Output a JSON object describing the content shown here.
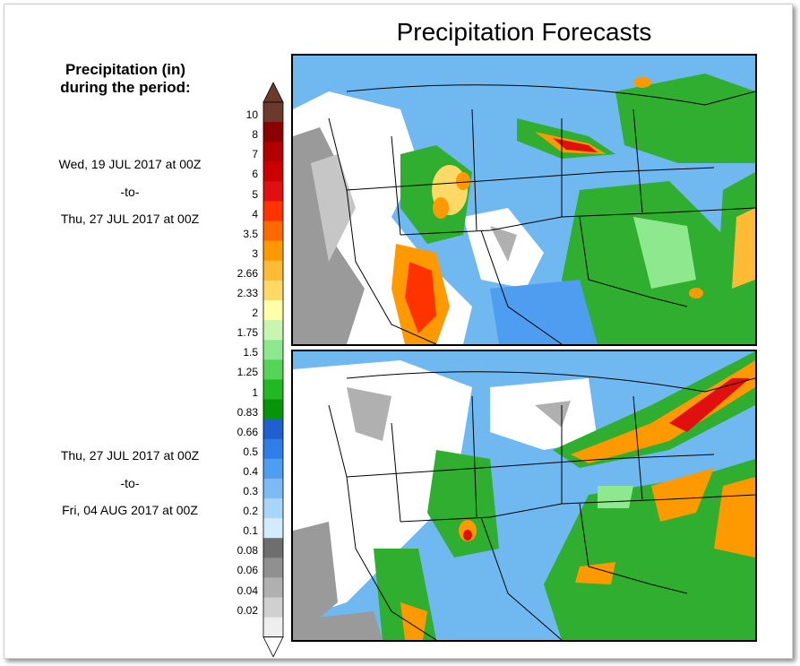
{
  "title": "Precipitation Forecasts",
  "legend": {
    "title_line1": "Precipitation (in)",
    "title_line2": "during the period:"
  },
  "periods": [
    {
      "start": "Wed, 19 JUL 2017 at 00Z",
      "sep": "-to-",
      "end": "Thu, 27 JUL 2017 at 00Z"
    },
    {
      "start": "Thu, 27 JUL 2017 at 00Z",
      "sep": "-to-",
      "end": "Fri, 04 AUG 2017 at 00Z"
    }
  ],
  "colorbar": {
    "levels": [
      "10",
      "8",
      "7",
      "6",
      "5",
      "4",
      "3.5",
      "3",
      "2.66",
      "2.33",
      "2",
      "1.75",
      "1.5",
      "1.25",
      "1",
      "0.83",
      "0.66",
      "0.5",
      "0.4",
      "0.3",
      "0.2",
      "0.1",
      "0.08",
      "0.06",
      "0.04",
      "0.02"
    ],
    "colors": [
      "#6b3a2a",
      "#8b0000",
      "#b00000",
      "#cc0000",
      "#e01010",
      "#ff3300",
      "#ff6a00",
      "#ff9900",
      "#ffbb33",
      "#ffd966",
      "#ffffaa",
      "#c8f5b0",
      "#8ee88e",
      "#55d455",
      "#22b822",
      "#089408",
      "#1f5fcf",
      "#2f7ee8",
      "#4f9df0",
      "#7cbaf5",
      "#a8d5fa",
      "#d0ecfd",
      "#6e6e6e",
      "#909090",
      "#b0b0b0",
      "#d0d0d0",
      "#eeeeee"
    ],
    "top_cap_color": "#6b3a2a",
    "bottom_cap_color": "#ffffff"
  }
}
